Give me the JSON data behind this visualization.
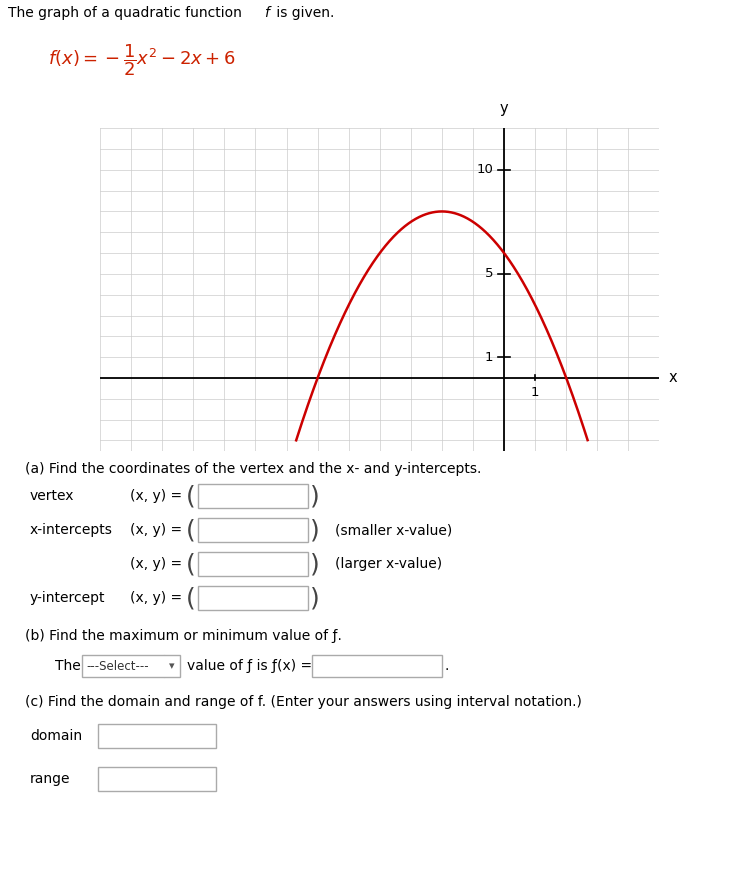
{
  "title_text": "The graph of a quadratic function ",
  "title_f": "f",
  "title_end": " is given.",
  "formula_color": "#cc2200",
  "curve_color": "#cc0000",
  "grid_color": "#cccccc",
  "axis_color": "#000000",
  "text_color": "#000000",
  "bg_color": "#ffffff",
  "x_label": "x",
  "y_label": "y",
  "y_tick_positions": [
    1,
    5,
    10
  ],
  "x_tick_positions": [
    1
  ],
  "plot_xlim": [
    -13,
    5
  ],
  "plot_ylim": [
    -3.5,
    12
  ],
  "section_a_text": "(a) Find the coordinates of the vertex and the x- and y-intercepts.",
  "section_b_text": "(b) Find the maximum or minimum value of f.",
  "section_c_text": "(c) Find the domain and range of f. (Enter your answers using interval notation.)"
}
